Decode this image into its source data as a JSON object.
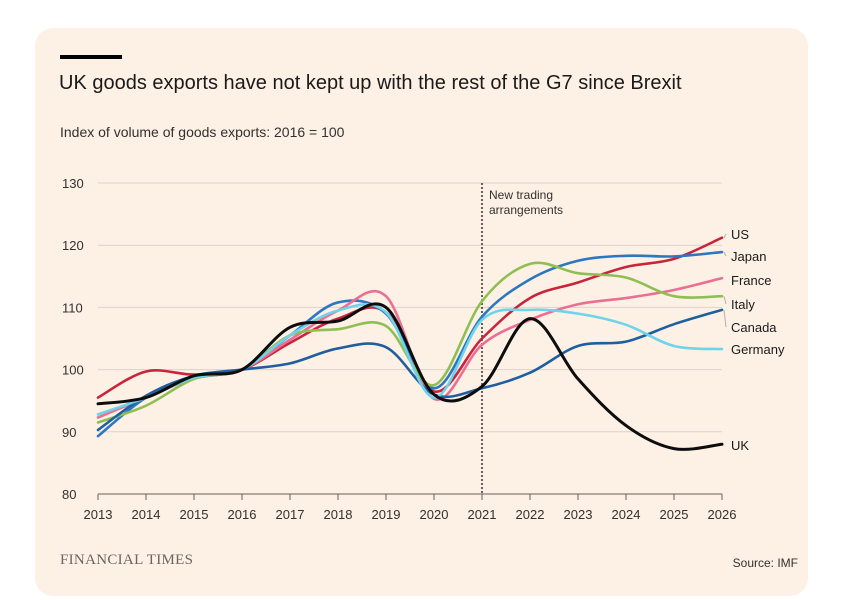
{
  "card": {
    "title": "UK goods exports have not kept up with the rest of the G7 since Brexit",
    "subtitle": "Index of volume of goods exports: 2016 = 100",
    "logo": "FINANCIAL TIMES",
    "source": "Source: IMF"
  },
  "colors": {
    "background": "#fdf1e6",
    "grid": "#ddd3ca",
    "axis": "#66605c",
    "text": "#33302e"
  },
  "chart_data": {
    "type": "line",
    "title": "UK goods exports have not kept up with the rest of the G7 since Brexit",
    "subtitle": "Index of volume of goods exports: 2016 = 100",
    "xlabel": "",
    "ylabel": "",
    "xlim": [
      2013,
      2026
    ],
    "ylim": [
      80,
      130
    ],
    "x_ticks": [
      "2013",
      "2014",
      "2015",
      "2016",
      "2017",
      "2018",
      "2019",
      "2020",
      "2021",
      "2022",
      "2023",
      "2024",
      "2025",
      "2026"
    ],
    "y_ticks": [
      "80",
      "90",
      "100",
      "110",
      "120",
      "130"
    ],
    "grid": true,
    "annotation": {
      "x": 2021,
      "lines": [
        "New trading",
        "arrangements"
      ]
    },
    "x": [
      2013,
      2014,
      2015,
      2016,
      2017,
      2018,
      2019,
      2020,
      2021,
      2022,
      2023,
      2024,
      2025,
      2026
    ],
    "series": [
      {
        "name": "US",
        "color": "#c8243a",
        "values": [
          95.5,
          99.7,
          99.2,
          100,
          104.3,
          108.2,
          109.2,
          96.5,
          105,
          111.5,
          114,
          116.5,
          117.8,
          121.2
        ]
      },
      {
        "name": "Japan",
        "color": "#2b77c2",
        "values": [
          89.3,
          95.5,
          98.6,
          100,
          105.5,
          110.8,
          109,
          97,
          108.5,
          114.5,
          117.5,
          118.3,
          118.2,
          118.9
        ]
      },
      {
        "name": "France",
        "color": "#ea6f92",
        "values": [
          92.3,
          95.5,
          98.6,
          100,
          104.8,
          109.5,
          111.8,
          95.3,
          104,
          108,
          110.5,
          111.5,
          112.8,
          114.7
        ]
      },
      {
        "name": "Italy",
        "color": "#8fbf52",
        "values": [
          91.5,
          94.2,
          98.5,
          100,
          105.5,
          106.5,
          107,
          97.5,
          111,
          117,
          115.5,
          114.8,
          111.8,
          111.8
        ]
      },
      {
        "name": "Canada",
        "color": "#1f5fa0",
        "values": [
          90.3,
          95.8,
          99,
          100,
          101,
          103.4,
          103.6,
          96,
          97,
          99.5,
          103.8,
          104.5,
          107.3,
          109.6
        ]
      },
      {
        "name": "Germany",
        "color": "#6fd3ea",
        "values": [
          92.8,
          95.5,
          98.7,
          100,
          105.5,
          109.5,
          109.2,
          95.5,
          108,
          109.6,
          109,
          107.2,
          103.8,
          103.3
        ]
      },
      {
        "name": "UK",
        "color": "#0d0d0d",
        "values": [
          94.5,
          95.5,
          99,
          100,
          106.8,
          107.8,
          110,
          96,
          97.3,
          108.2,
          98.5,
          91,
          87.3,
          88
        ]
      }
    ]
  }
}
